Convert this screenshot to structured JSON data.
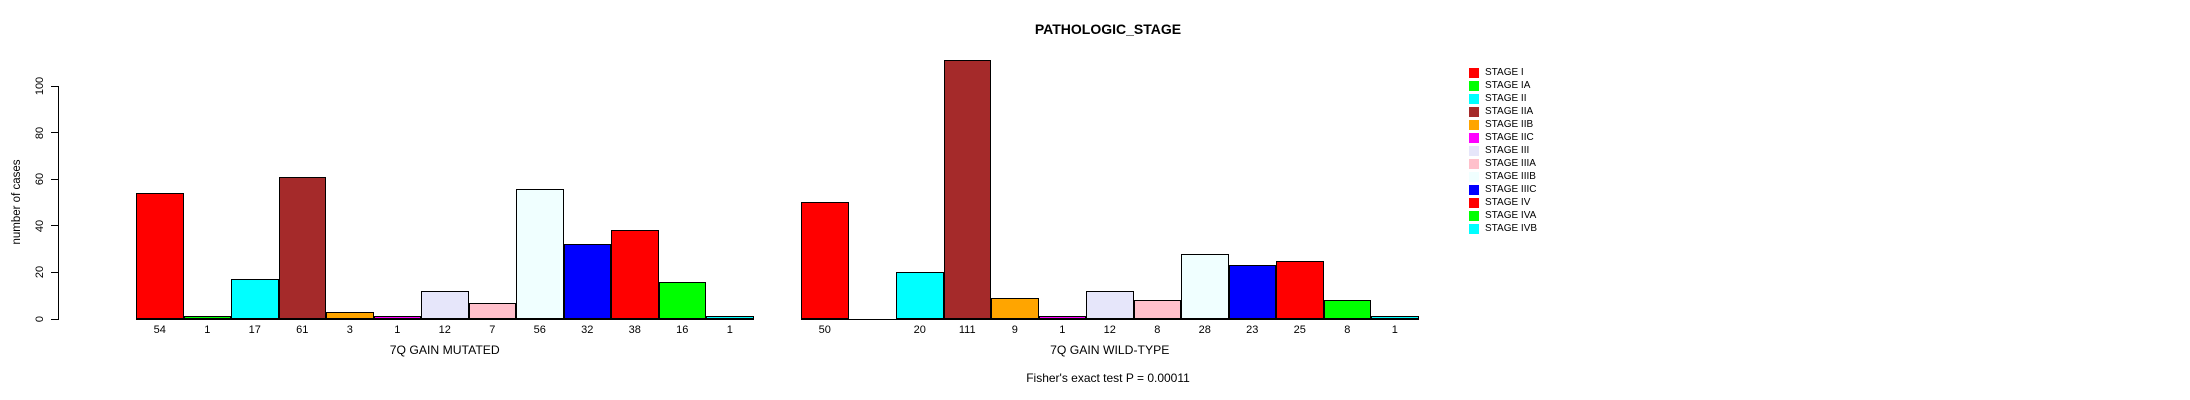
{
  "figure": {
    "title": "PATHOLOGIC_STAGE",
    "footer": "Fisher's exact test P = 0.00011"
  },
  "chart_data": {
    "type": "bar",
    "title": "PATHOLOGIC_STAGE",
    "ylabel": "number of cases",
    "ylim": [
      0,
      100
    ],
    "yticks": [
      0,
      20,
      40,
      60,
      80,
      100
    ],
    "grid": false,
    "legend_position": "right",
    "categories": [
      "STAGE I",
      "STAGE IA",
      "STAGE II",
      "STAGE IIA",
      "STAGE IIB",
      "STAGE IIC",
      "STAGE III",
      "STAGE IIIA",
      "STAGE IIIB",
      "STAGE IIIC",
      "STAGE IV",
      "STAGE IVA",
      "STAGE IVB"
    ],
    "colors": [
      "#FF0000",
      "#00FF00",
      "#00FFFF",
      "#A52A2A",
      "#FFA500",
      "#FF00FF",
      "#E6E6FA",
      "#FFC0CB",
      "#F0FFFF",
      "#0000FF",
      "#FF0000",
      "#00FF00",
      "#00FFFF"
    ],
    "series": [
      {
        "name": "7Q GAIN MUTATED",
        "values": [
          54,
          1,
          17,
          61,
          3,
          1,
          12,
          7,
          56,
          32,
          38,
          16,
          1
        ],
        "bar_labels": [
          "54",
          "1",
          "17",
          "61",
          "3",
          "1",
          "12",
          "7",
          "56",
          "32",
          "38",
          "16",
          "1"
        ]
      },
      {
        "name": "7Q GAIN WILD-TYPE",
        "values": [
          50,
          0,
          20,
          111,
          9,
          1,
          12,
          8,
          28,
          23,
          25,
          8,
          1
        ],
        "bar_labels": [
          "50",
          "",
          "20",
          "111",
          "9",
          "1",
          "12",
          "8",
          "28",
          "23",
          "25",
          "8",
          "1"
        ]
      }
    ],
    "annotations": [
      "Fisher's exact test P = 0.00011"
    ]
  },
  "legend": {
    "items": [
      {
        "label": "STAGE I",
        "color": "#FF0000"
      },
      {
        "label": "STAGE IA",
        "color": "#00FF00"
      },
      {
        "label": "STAGE II",
        "color": "#00FFFF"
      },
      {
        "label": "STAGE IIA",
        "color": "#A52A2A"
      },
      {
        "label": "STAGE IIB",
        "color": "#FFA500"
      },
      {
        "label": "STAGE IIC",
        "color": "#FF00FF"
      },
      {
        "label": "STAGE III",
        "color": "#E6E6FA"
      },
      {
        "label": "STAGE IIIA",
        "color": "#FFC0CB"
      },
      {
        "label": "STAGE IIIB",
        "color": "#F0FFFF"
      },
      {
        "label": "STAGE IIIC",
        "color": "#0000FF"
      },
      {
        "label": "STAGE IV",
        "color": "#FF0000"
      },
      {
        "label": "STAGE IVA",
        "color": "#00FF00"
      },
      {
        "label": "STAGE IVB",
        "color": "#00FFFF"
      }
    ]
  }
}
